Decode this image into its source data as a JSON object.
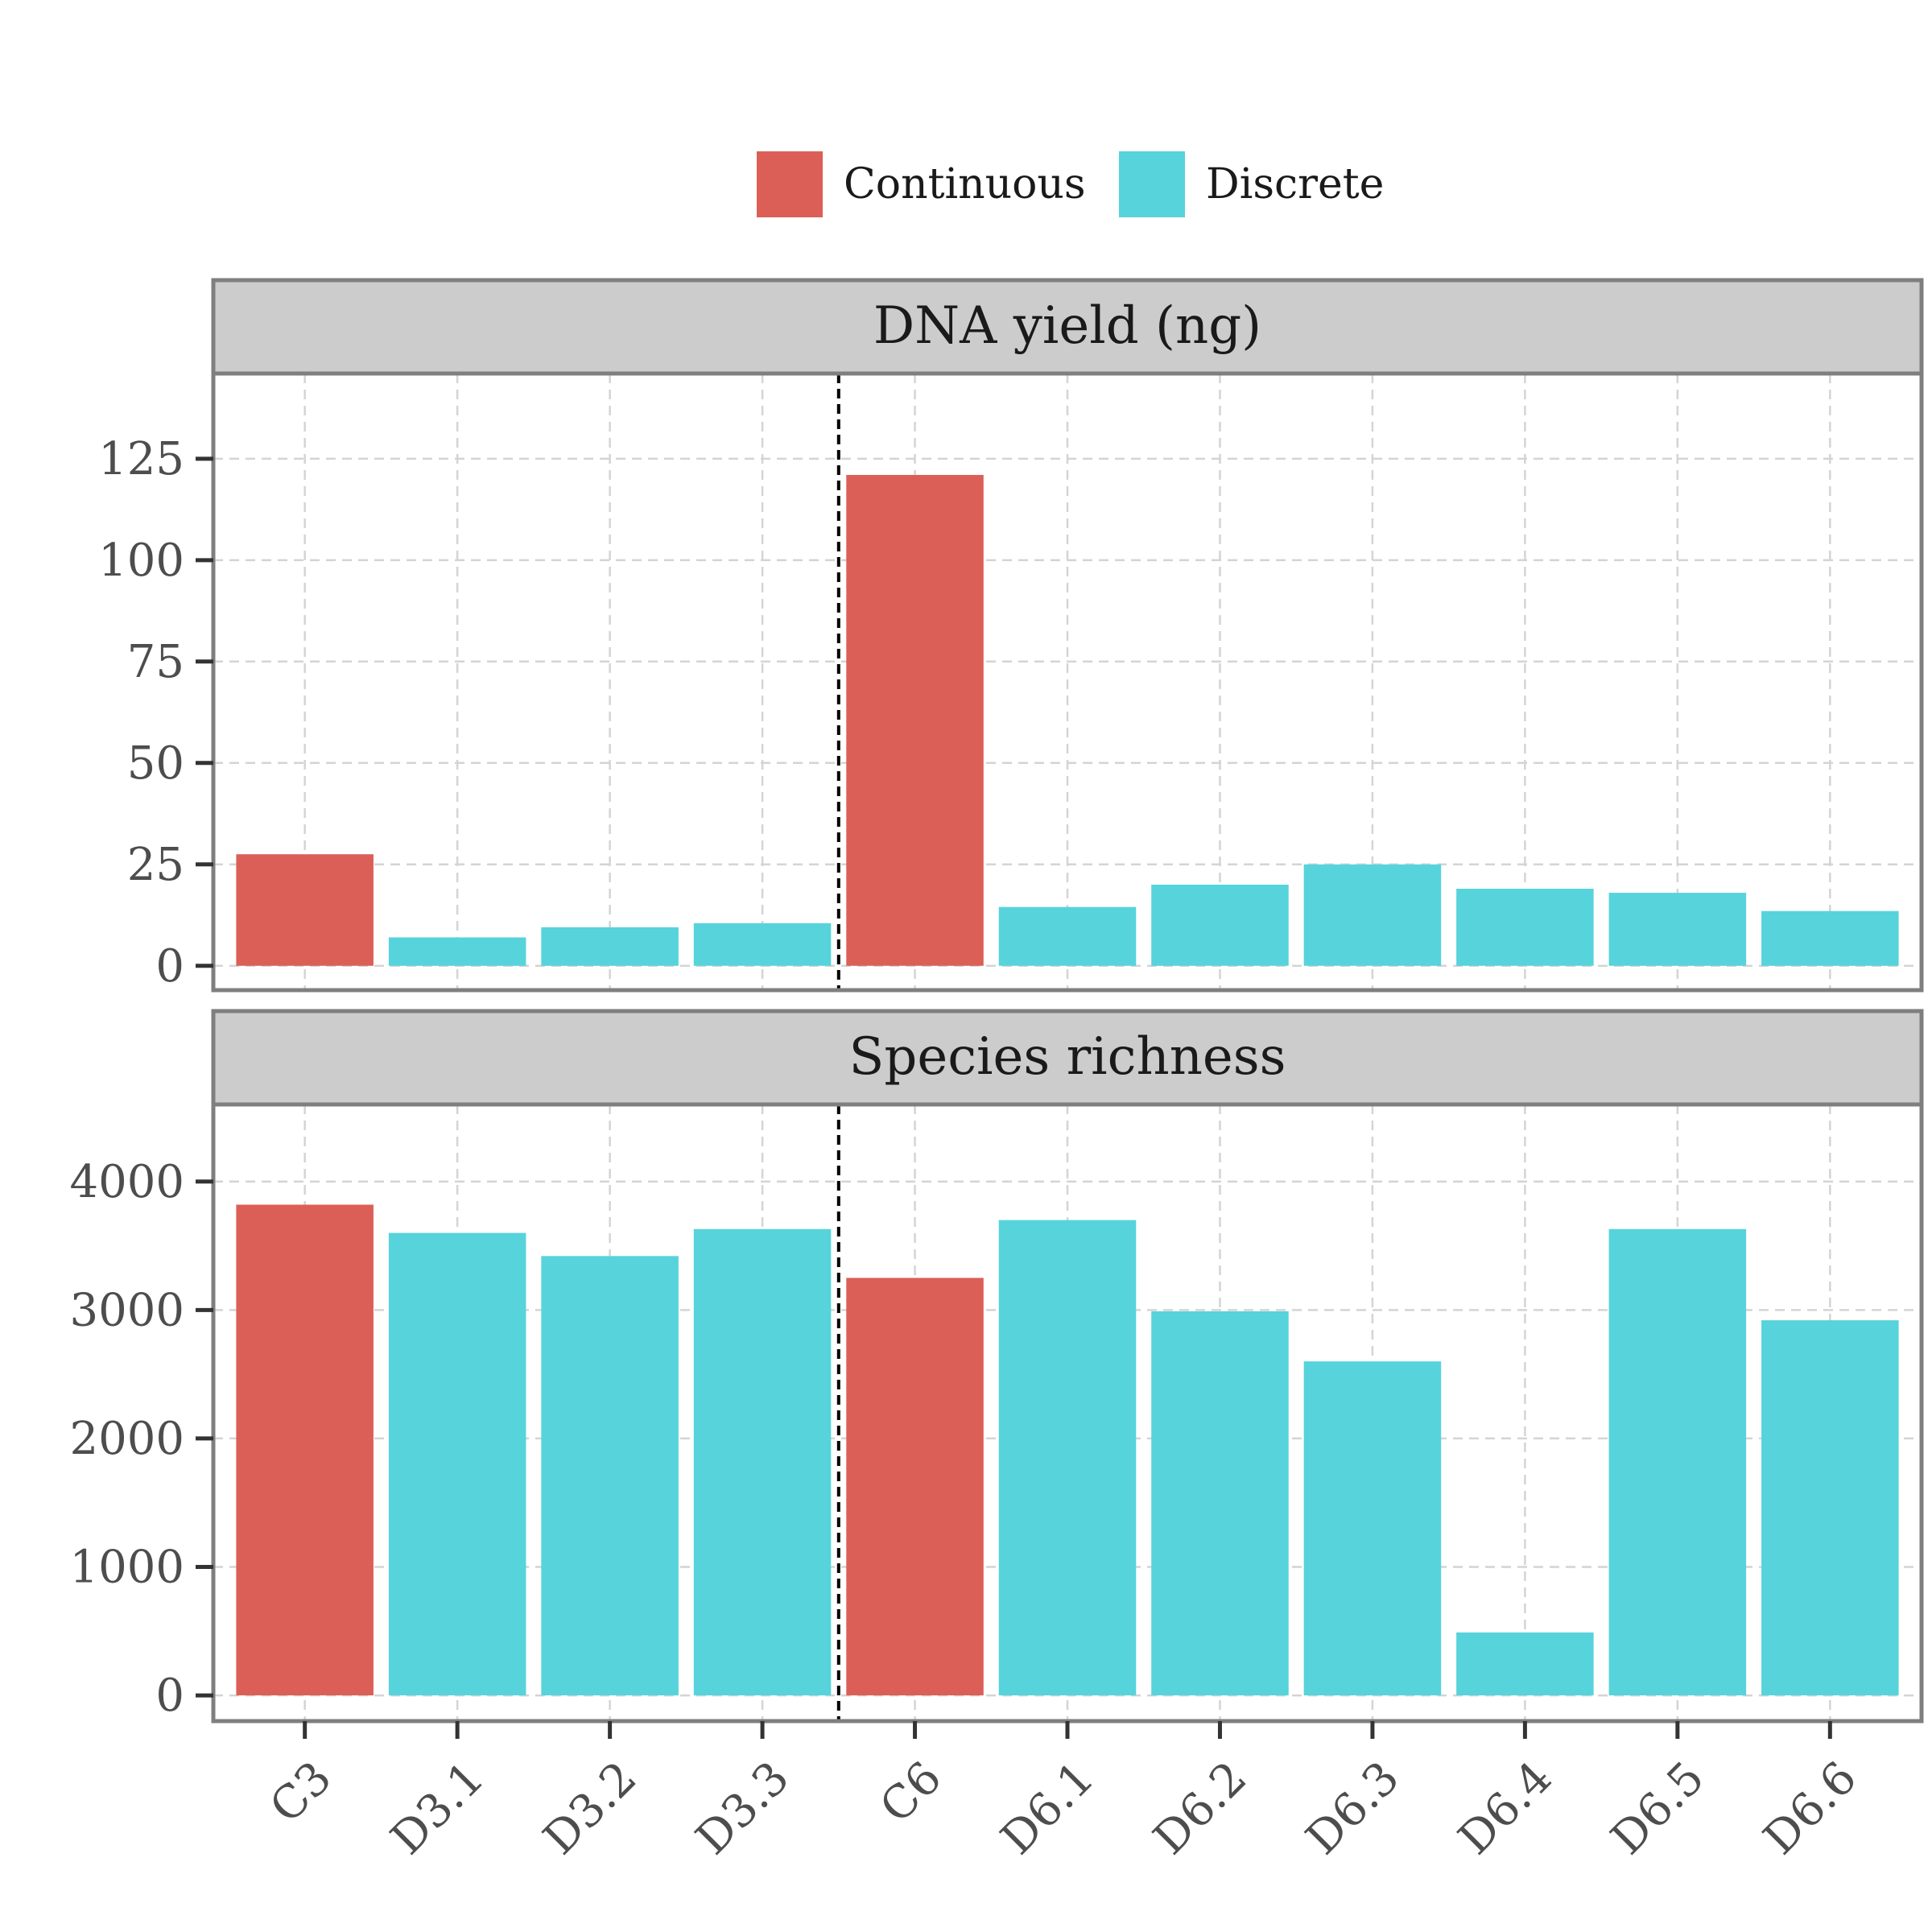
{
  "chart_data": {
    "type": "bar",
    "categories": [
      "C3",
      "D3.1",
      "D3.2",
      "D3.3",
      "C6",
      "D6.1",
      "D6.2",
      "D6.3",
      "D6.4",
      "D6.5",
      "D6.6"
    ],
    "group": [
      "Continuous",
      "Discrete",
      "Discrete",
      "Discrete",
      "Continuous",
      "Discrete",
      "Discrete",
      "Discrete",
      "Discrete",
      "Discrete",
      "Discrete"
    ],
    "legend": {
      "position": "top",
      "entries": [
        {
          "label": "Continuous",
          "color": "#DB5F57"
        },
        {
          "label": "Discrete",
          "color": "#57D3DB"
        }
      ]
    },
    "vline_between": [
      "D3.3",
      "C6"
    ],
    "grid": true,
    "panels": [
      {
        "title": "DNA yield (ng)",
        "values": [
          27.5,
          7,
          9.5,
          10.5,
          121,
          14.5,
          20,
          25,
          19,
          18,
          13.5
        ],
        "ylim": [
          -6,
          146
        ],
        "yticks": [
          0,
          25,
          50,
          75,
          100,
          125
        ]
      },
      {
        "title": "Species richness",
        "values": [
          3820,
          3600,
          3420,
          3630,
          3250,
          3700,
          2990,
          2600,
          490,
          3630,
          2920
        ],
        "ylim": [
          -200,
          4600
        ],
        "yticks": [
          0,
          1000,
          2000,
          3000,
          4000
        ]
      }
    ]
  }
}
